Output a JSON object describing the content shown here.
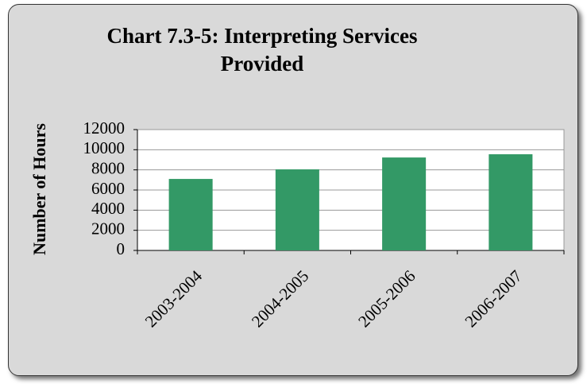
{
  "chart_data": {
    "type": "bar",
    "title": "Chart 7.3-5: Interpreting Services Provided",
    "y_label": "Number of Hours",
    "categories": [
      "2003-2004",
      "2004-2005",
      "2005-2006",
      "2006-2007"
    ],
    "values": [
      7100,
      8050,
      9230,
      9550
    ],
    "color": "#339966",
    "ylim": [
      0,
      12000
    ],
    "yticks": [
      0,
      2000,
      4000,
      6000,
      8000,
      10000,
      12000
    ],
    "grid": true
  }
}
